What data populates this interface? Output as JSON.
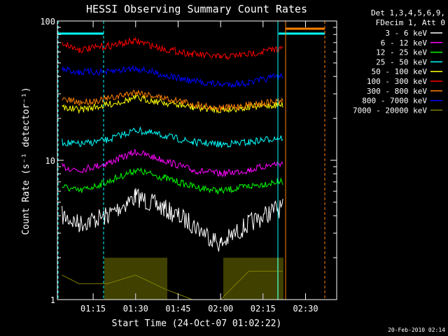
{
  "chart_data": {
    "type": "line",
    "title": "HESSI Observing Summary Count Rates",
    "xlabel": "Start Time (24-Oct-07 01:02:22)",
    "ylabel": "Count Rate (s⁻¹ detector⁻¹)",
    "yscale": "log",
    "ylim": [
      1,
      100
    ],
    "xlim": [
      "01:02:22",
      "02:41:00"
    ],
    "x_ticks": [
      "01:15",
      "01:30",
      "01:45",
      "02:00",
      "02:15",
      "02:30"
    ],
    "y_ticks": [
      "1",
      "10",
      "100"
    ],
    "legend_header": [
      "Det 1,3,4,5,6,9,",
      "FDecim 1, Att 0"
    ],
    "legend_position": "top-right",
    "timestamp": "20-Feb-2010 02:14",
    "x": [
      "01:04",
      "01:10",
      "01:20",
      "01:30",
      "01:40",
      "01:50",
      "02:00",
      "02:10",
      "02:20",
      "02:22"
    ],
    "series": [
      {
        "name": "3 - 6 keV",
        "color": "#ffffff",
        "values": [
          4.0,
          3.5,
          4.0,
          5.5,
          4.5,
          3.5,
          2.5,
          3.5,
          4.5,
          4.5
        ]
      },
      {
        "name": "6 - 12 keV",
        "color": "#ff00ff",
        "values": [
          9.0,
          8.5,
          9.5,
          11.5,
          10.0,
          8.5,
          8.0,
          8.5,
          9.5,
          9.5
        ]
      },
      {
        "name": "12 - 25 keV",
        "color": "#00ff00",
        "values": [
          6.5,
          6.0,
          7.0,
          8.5,
          7.5,
          6.5,
          6.0,
          6.5,
          7.0,
          7.0
        ]
      },
      {
        "name": "25 - 50 keV",
        "color": "#00ffff",
        "values": [
          13.5,
          13.0,
          14.0,
          16.5,
          15.0,
          13.5,
          13.0,
          13.5,
          14.5,
          14.5
        ]
      },
      {
        "name": "50 - 100 keV",
        "color": "#ffff00",
        "values": [
          24.0,
          23.0,
          25.0,
          28.0,
          26.0,
          24.0,
          23.0,
          24.0,
          25.0,
          25.0
        ]
      },
      {
        "name": "100 - 300 keV",
        "color": "#ff0000",
        "values": [
          70,
          62,
          66,
          72,
          63,
          58,
          55,
          58,
          63,
          63
        ]
      },
      {
        "name": "300 - 800 keV",
        "color": "#ff8000",
        "values": [
          27.5,
          26.0,
          27.5,
          31.0,
          28.0,
          25.5,
          23.5,
          25.0,
          26.5,
          26.5
        ]
      },
      {
        "name": "800 - 7000 keV",
        "color": "#0000ff",
        "values": [
          45,
          43,
          43,
          46,
          41,
          37,
          35,
          36,
          40,
          40
        ]
      },
      {
        "name": "7000 - 20000 keV",
        "color": "#808000",
        "values": [
          1.5,
          1.3,
          1.3,
          1.5,
          1.2,
          1.0,
          1.0,
          1.6,
          1.6,
          1.6
        ]
      }
    ],
    "legend": [
      {
        "label": "3 - 6 keV",
        "color": "#ffffff"
      },
      {
        "label": "6 - 12 keV",
        "color": "#ff00ff"
      },
      {
        "label": "12 - 25 keV",
        "color": "#00ff00"
      },
      {
        "label": "25 - 50 keV",
        "color": "#00ffff"
      },
      {
        "label": "50 - 100 keV",
        "color": "#ffff00"
      },
      {
        "label": "100 - 300 keV",
        "color": "#ff0000"
      },
      {
        "label": "300 - 800 keV",
        "color": "#ff8000"
      },
      {
        "label": "800 - 7000 keV",
        "color": "#0000ff"
      },
      {
        "label": "7000 - 20000 keV",
        "color": "#808000"
      }
    ],
    "flags": [
      {
        "name": "attenuator-cyan",
        "color": "#00ffff"
      },
      {
        "name": "orange-flag",
        "color": "#ff8000"
      }
    ],
    "grid": false
  }
}
